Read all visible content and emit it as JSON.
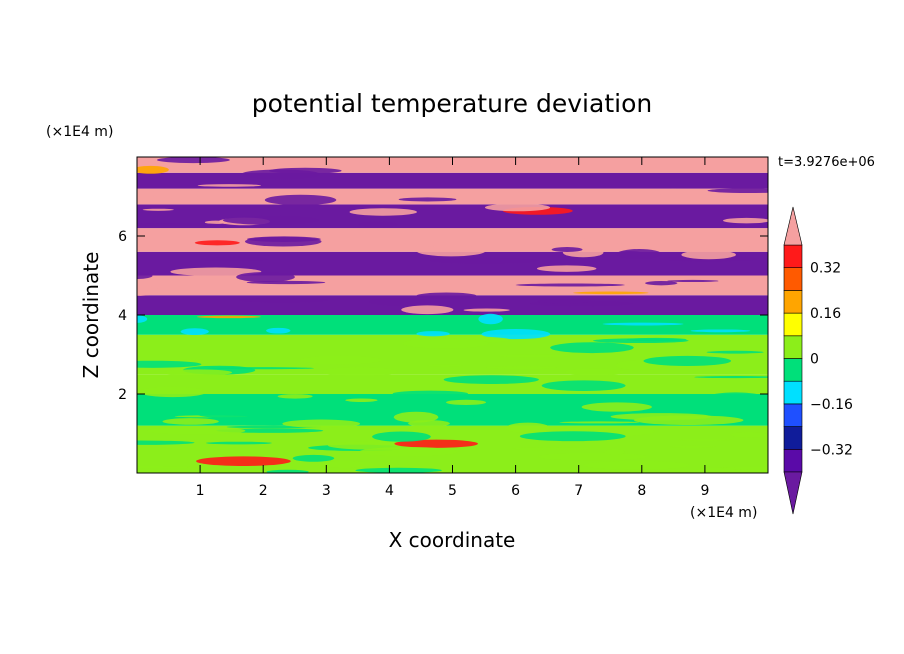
{
  "chart_data": {
    "type": "heatmap",
    "title": "potential temperature deviation",
    "xlabel": "X coordinate",
    "ylabel": "Z coordinate",
    "x_unit": "(×1E4 m)",
    "y_unit": "(×1E4 m)",
    "time_label": "t=3.9276e+06",
    "xlim": [
      0,
      10
    ],
    "ylim": [
      0,
      8
    ],
    "x_ticks": [
      "1",
      "2",
      "3",
      "4",
      "5",
      "6",
      "7",
      "8",
      "9"
    ],
    "y_ticks": [
      "2",
      "4",
      "6"
    ],
    "colorbar": {
      "levels": [
        -0.4,
        -0.32,
        -0.24,
        -0.16,
        -0.08,
        0,
        0.08,
        0.16,
        0.24,
        0.32,
        0.4
      ],
      "labels": [
        "0.32",
        "0.16",
        "0",
        "−0.16",
        "−0.32"
      ],
      "colors": [
        "#5a0aa8",
        "#101c9a",
        "#1f50ff",
        "#00e0ff",
        "#00e07a",
        "#8cee1a",
        "#ffff00",
        "#ffa500",
        "#ff5a00",
        "#ff1a1a"
      ],
      "over_color": "#f5a0a0",
      "under_color": "#6a1aa0"
    },
    "bands": [
      {
        "z0": 0.0,
        "z1": 1.2,
        "value": 0.04
      },
      {
        "z0": 1.2,
        "z1": 2.0,
        "value": 0.0
      },
      {
        "z0": 2.0,
        "z1": 2.5,
        "value": 0.05
      },
      {
        "z0": 2.5,
        "z1": 3.5,
        "value": 0.03
      },
      {
        "z0": 3.5,
        "z1": 4.0,
        "value": -0.06
      },
      {
        "z0": 4.0,
        "z1": 4.5,
        "value": -0.45
      },
      {
        "z0": 4.5,
        "z1": 5.0,
        "value": 0.45
      },
      {
        "z0": 5.0,
        "z1": 5.6,
        "value": -0.45
      },
      {
        "z0": 5.6,
        "z1": 6.2,
        "value": 0.45
      },
      {
        "z0": 6.2,
        "z1": 6.8,
        "value": -0.45
      },
      {
        "z0": 6.8,
        "z1": 7.2,
        "value": 0.45
      },
      {
        "z0": 7.2,
        "z1": 7.6,
        "value": -0.45
      },
      {
        "z0": 7.6,
        "z1": 8.0,
        "value": 0.45
      }
    ]
  }
}
